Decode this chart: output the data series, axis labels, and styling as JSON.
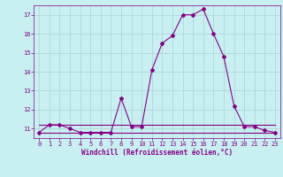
{
  "xlabel": "Windchill (Refroidissement éolien,°C)",
  "background_color": "#c8f0f0",
  "grid_color": "#b0d8d8",
  "line_color": "#880088",
  "x_main": [
    0,
    1,
    2,
    3,
    4,
    5,
    6,
    7,
    8,
    9,
    10,
    11,
    12,
    13,
    14,
    15,
    16,
    17,
    18,
    19,
    20,
    21,
    22,
    23
  ],
  "y_main": [
    10.8,
    11.2,
    11.2,
    11.0,
    10.8,
    10.8,
    10.8,
    10.8,
    12.6,
    11.1,
    11.1,
    14.1,
    15.5,
    15.9,
    17.0,
    17.0,
    17.3,
    16.0,
    14.8,
    12.2,
    11.1,
    11.1,
    10.9,
    10.8
  ],
  "y_flat1": [
    11.2,
    11.2,
    11.2,
    11.2,
    11.2,
    11.2,
    11.2,
    11.2,
    11.2,
    11.2,
    11.2,
    11.2,
    11.2,
    11.2,
    11.2,
    11.2,
    11.2,
    11.2,
    11.2,
    11.2,
    11.2,
    11.2,
    11.2,
    11.2
  ],
  "y_flat2": [
    10.8,
    10.8,
    10.8,
    10.8,
    10.8,
    10.8,
    10.8,
    10.8,
    10.8,
    10.8,
    10.8,
    10.8,
    10.8,
    10.8,
    10.8,
    10.8,
    10.8,
    10.8,
    10.8,
    10.8,
    10.8,
    10.8,
    10.8,
    10.8
  ],
  "ylim": [
    10.5,
    17.5
  ],
  "xlim": [
    -0.5,
    23.5
  ],
  "yticks": [
    11,
    12,
    13,
    14,
    15,
    16,
    17
  ],
  "xticks": [
    0,
    1,
    2,
    3,
    4,
    5,
    6,
    7,
    8,
    9,
    10,
    11,
    12,
    13,
    14,
    15,
    16,
    17,
    18,
    19,
    20,
    21,
    22,
    23
  ],
  "tick_fontsize": 5.0,
  "xlabel_fontsize": 5.5,
  "marker_size": 2.0,
  "linewidth": 0.8
}
